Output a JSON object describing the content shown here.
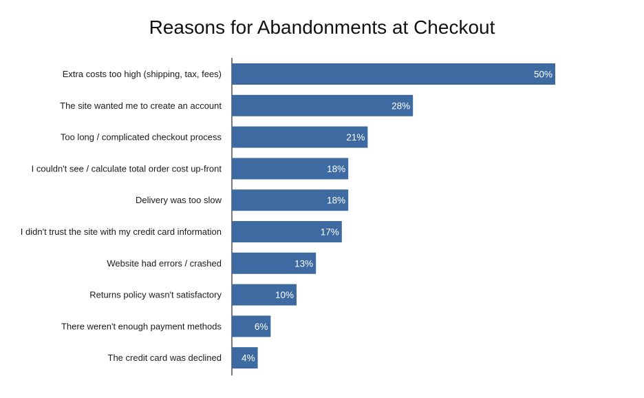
{
  "chart_data": {
    "type": "bar",
    "orientation": "horizontal",
    "title": "Reasons for Abandonments at Checkout",
    "categories": [
      "Extra costs too high (shipping, tax, fees)",
      "The site wanted me to create an account",
      "Too long / complicated checkout process",
      "I couldn't see / calculate total order cost up-front",
      "Delivery was too slow",
      "I didn't trust the site with my credit card information",
      "Website had errors / crashed",
      "Returns policy wasn't satisfactory",
      "There weren't enough payment methods",
      "The credit card was declined"
    ],
    "values": [
      50,
      28,
      21,
      18,
      18,
      17,
      13,
      10,
      6,
      4
    ],
    "value_labels": [
      "50%",
      "28%",
      "21%",
      "18%",
      "18%",
      "17%",
      "13%",
      "10%",
      "6%",
      "4%"
    ],
    "unit": "%",
    "xlim": [
      0,
      50
    ],
    "grid": false,
    "legend": "none",
    "bar_color": "#3d6aa0"
  }
}
